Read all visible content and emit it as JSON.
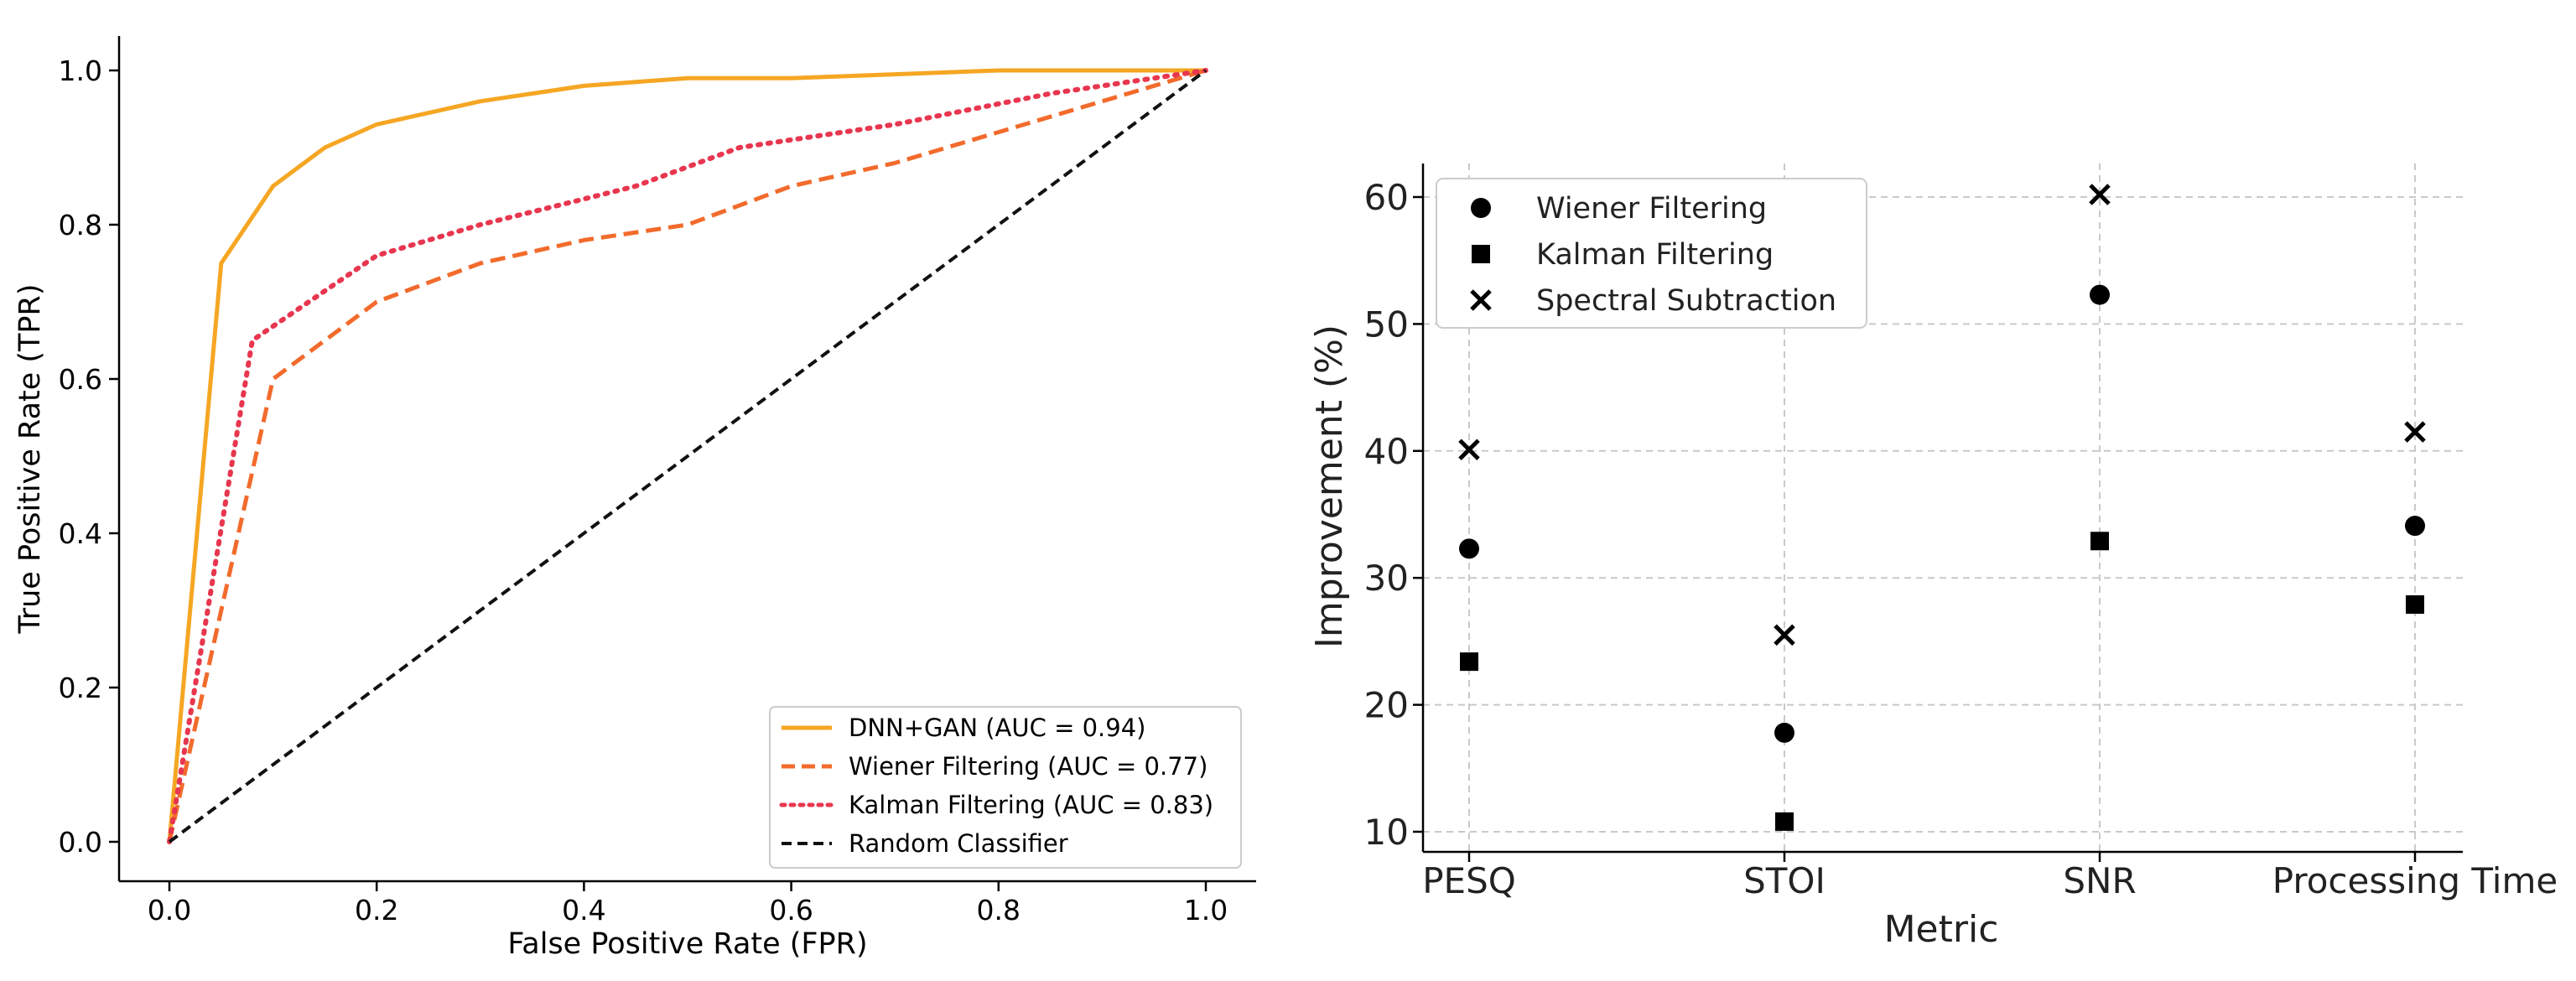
{
  "chart_data": [
    {
      "type": "line",
      "title": "",
      "xlabel": "False Positive Rate (FPR)",
      "ylabel": "True Positive Rate (TPR)",
      "xlim": [
        -0.05,
        1.05
      ],
      "ylim": [
        -0.05,
        1.05
      ],
      "xticks": [
        "0.0",
        "0.2",
        "0.4",
        "0.6",
        "0.8",
        "1.0"
      ],
      "yticks": [
        "0.0",
        "0.2",
        "0.4",
        "0.6",
        "0.8",
        "1.0"
      ],
      "grid": false,
      "legend_position": "bottom-right",
      "series": [
        {
          "name": "DNN+GAN (AUC = 0.94)",
          "color": "#f5a623",
          "style": "solid",
          "x": [
            0,
            0.05,
            0.1,
            0.15,
            0.2,
            0.3,
            0.4,
            0.5,
            0.6,
            0.7,
            0.8,
            0.9,
            1.0
          ],
          "y": [
            0,
            0.75,
            0.85,
            0.9,
            0.93,
            0.96,
            0.98,
            0.99,
            0.99,
            0.995,
            1.0,
            1.0,
            1.0
          ]
        },
        {
          "name": "Wiener Filtering (AUC = 0.77)",
          "color": "#f26b2c",
          "style": "dashed",
          "x": [
            0,
            0.1,
            0.2,
            0.3,
            0.4,
            0.5,
            0.6,
            0.7,
            0.8,
            0.9,
            1.0
          ],
          "y": [
            0,
            0.6,
            0.7,
            0.75,
            0.78,
            0.8,
            0.85,
            0.88,
            0.92,
            0.96,
            1.0
          ]
        },
        {
          "name": "Kalman Filtering (AUC = 0.83)",
          "color": "#e8364f",
          "style": "dotted",
          "x": [
            0,
            0.08,
            0.2,
            0.3,
            0.45,
            0.55,
            0.7,
            0.85,
            1.0
          ],
          "y": [
            0,
            0.65,
            0.76,
            0.8,
            0.85,
            0.9,
            0.93,
            0.97,
            1.0
          ]
        },
        {
          "name": "Random Classifier",
          "color": "#111111",
          "style": "dashed",
          "x": [
            0,
            1
          ],
          "y": [
            0,
            1
          ]
        }
      ]
    },
    {
      "type": "scatter",
      "title": "",
      "xlabel": "Metric",
      "ylabel": "Improvement (%)",
      "categories": [
        "PESQ",
        "STOI",
        "SNR",
        "Processing Time"
      ],
      "ylim": [
        8,
        62.5
      ],
      "yticks": [
        "10",
        "20",
        "30",
        "40",
        "50",
        "60"
      ],
      "grid": true,
      "legend_position": "top-left",
      "series": [
        {
          "name": "Wiener Filtering",
          "marker": "circle",
          "values": [
            32.3,
            17.8,
            52.3,
            34.1
          ]
        },
        {
          "name": "Kalman Filtering",
          "marker": "square",
          "values": [
            23.4,
            10.8,
            32.9,
            27.9
          ]
        },
        {
          "name": "Spectral Subtraction",
          "marker": "x",
          "values": [
            40.1,
            25.5,
            60.2,
            41.5
          ]
        }
      ]
    }
  ]
}
